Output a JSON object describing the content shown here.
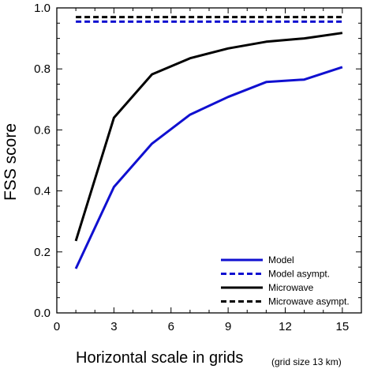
{
  "chart_data": {
    "type": "line",
    "xlabel": "Horizontal scale in grids",
    "xlabel_note": "(grid size 13 km)",
    "ylabel": "FSS score",
    "xlim": [
      0,
      16
    ],
    "ylim": [
      0.0,
      1.0
    ],
    "x_ticks": [
      "0",
      "3",
      "6",
      "9",
      "12",
      "15"
    ],
    "y_ticks": [
      "0.0",
      "0.2",
      "0.4",
      "0.6",
      "0.8",
      "1.0"
    ],
    "grid": false,
    "legend_position": "bottom-right",
    "series": [
      {
        "name": "Model",
        "color": "#1010d0",
        "style": "solid",
        "x": [
          1,
          3,
          5,
          7,
          9,
          11,
          13,
          15
        ],
        "y": [
          0.145,
          0.413,
          0.555,
          0.65,
          0.708,
          0.757,
          0.765,
          0.806
        ]
      },
      {
        "name": "Model asympt.",
        "color": "#1010d0",
        "style": "dashed",
        "x": [
          1,
          15
        ],
        "y": [
          0.955,
          0.955
        ]
      },
      {
        "name": "Microwave",
        "color": "#000000",
        "style": "solid",
        "x": [
          1,
          3,
          5,
          7,
          9,
          11,
          13,
          15
        ],
        "y": [
          0.236,
          0.64,
          0.782,
          0.835,
          0.867,
          0.889,
          0.9,
          0.918
        ]
      },
      {
        "name": "Microwave asympt.",
        "color": "#000000",
        "style": "dashed",
        "x": [
          1,
          15
        ],
        "y": [
          0.97,
          0.97
        ]
      }
    ]
  }
}
